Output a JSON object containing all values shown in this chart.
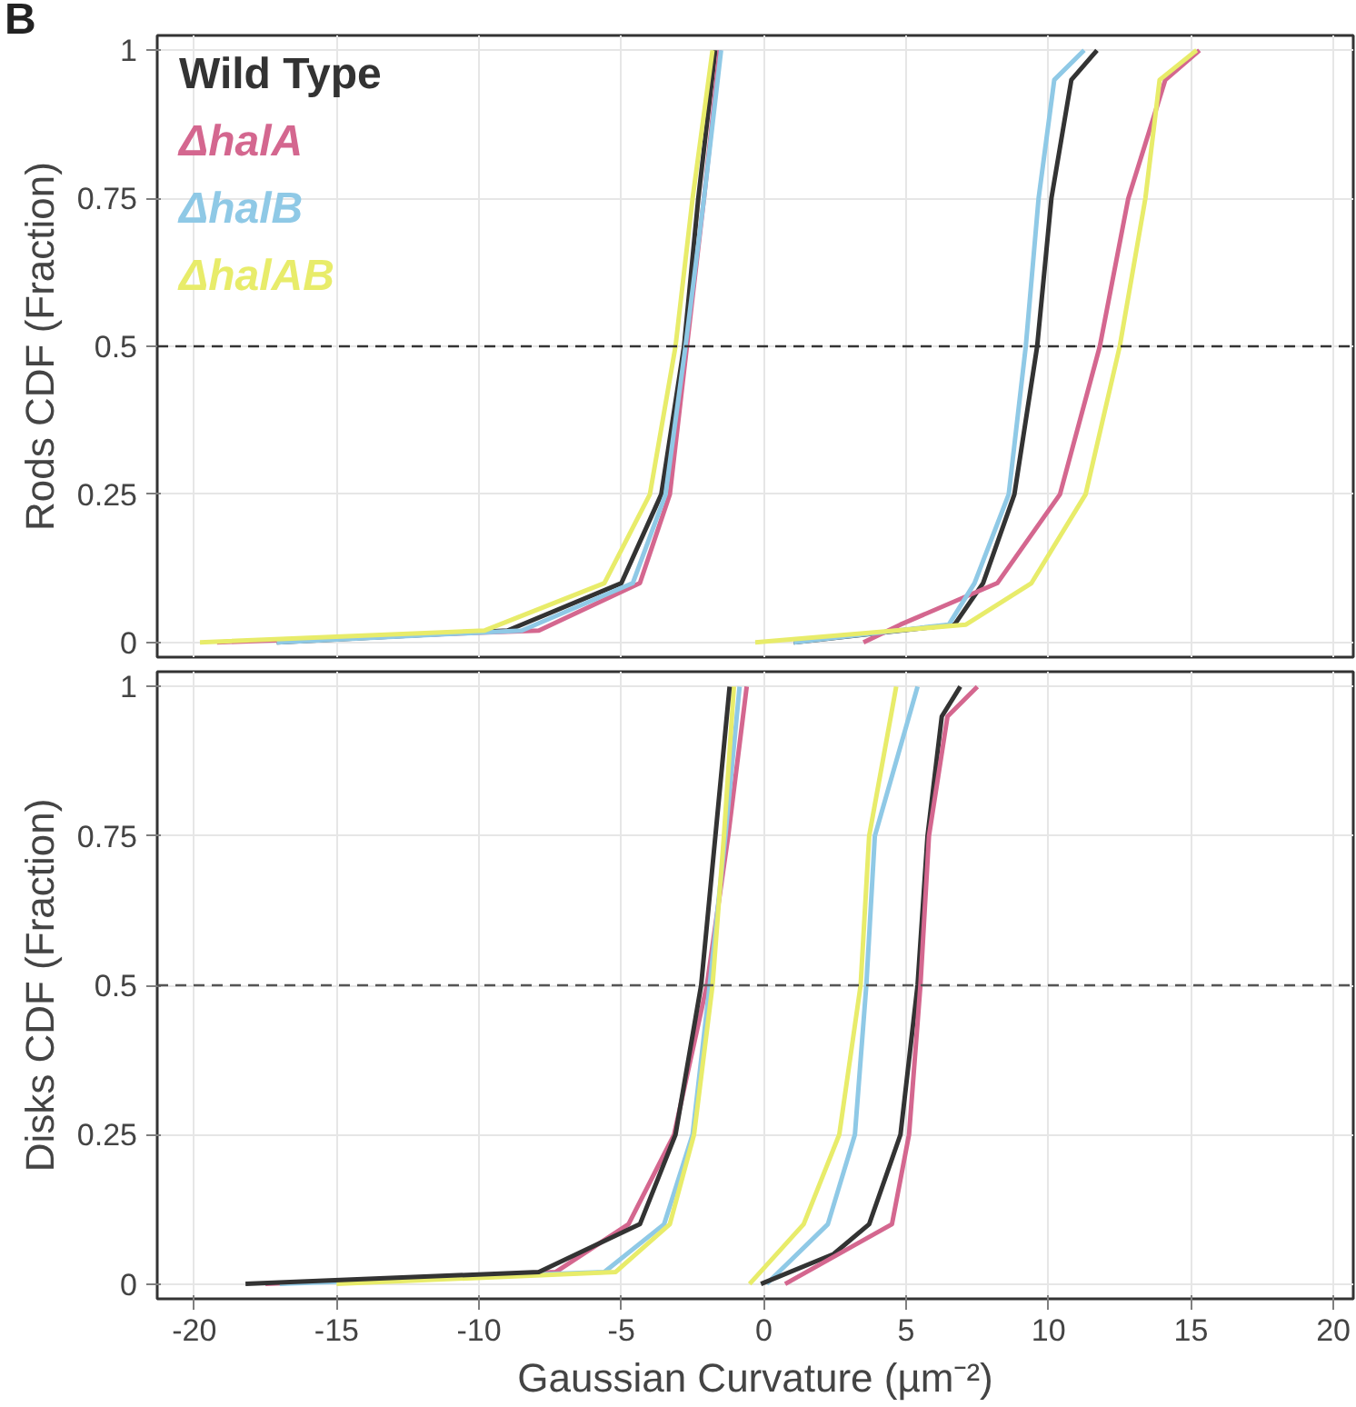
{
  "chart_data": [
    {
      "type": "line",
      "ylabel": "Rods CDF (Fraction)",
      "annotations": [
        "B"
      ],
      "xlim": [
        -21.3,
        20.7
      ],
      "ylim": [
        -0.025,
        1.025
      ],
      "xticks": [
        -20,
        -15,
        -10,
        -5,
        0,
        5,
        10,
        15,
        20
      ],
      "yticks": [
        0,
        0.25,
        0.5,
        0.75,
        1
      ],
      "grid": true,
      "legend": "top left",
      "tick_labels": "y",
      "marker": "none",
      "line_style": "solid",
      "ref_lines": [
        {
          "axis": "y",
          "value": 0.5,
          "color": "#333333",
          "line_style": "dashed"
        }
      ],
      "series": [
        {
          "name": "Wild Type",
          "color": "#333333",
          "x": [
            -17.1,
            -9,
            -5.0,
            -3.6,
            -2.8,
            -2.3,
            -1.7
          ],
          "values": [
            0,
            0.02,
            0.1,
            0.25,
            0.5,
            0.75,
            1
          ]
        },
        {
          "name": "ΔhalA",
          "color": "#d4678f",
          "x": [
            -19.2,
            -7.9,
            -4.35,
            -3.3,
            -2.7,
            -2.1,
            -1.55
          ],
          "values": [
            0,
            0.02,
            0.1,
            0.25,
            0.5,
            0.75,
            1
          ]
        },
        {
          "name": "ΔhalB",
          "color": "#8fc9e6",
          "x": [
            -17.1,
            -8.5,
            -4.6,
            -3.45,
            -2.75,
            -2.1,
            -1.5
          ],
          "values": [
            0,
            0.02,
            0.1,
            0.25,
            0.5,
            0.75,
            1
          ]
        },
        {
          "name": "ΔhalAB",
          "color": "#e8ec6a",
          "x": [
            -19.8,
            -9.8,
            -5.6,
            -4.0,
            -3.1,
            -2.5,
            -1.8
          ],
          "values": [
            0,
            0.02,
            0.1,
            0.25,
            0.5,
            0.75,
            1
          ]
        },
        {
          "color": "#333333",
          "x": [
            1.05,
            6.7,
            7.7,
            8.8,
            9.6,
            10.1,
            10.8,
            11.7
          ],
          "values": [
            0,
            0.03,
            0.1,
            0.25,
            0.5,
            0.75,
            0.95,
            1
          ]
        },
        {
          "color": "#d4678f",
          "x": [
            3.5,
            4.8,
            8.2,
            10.4,
            11.8,
            12.8,
            14.1,
            15.3
          ],
          "values": [
            0,
            0.03,
            0.1,
            0.25,
            0.5,
            0.75,
            0.95,
            1
          ]
        },
        {
          "color": "#8fc9e6",
          "x": [
            1.05,
            6.5,
            7.4,
            8.6,
            9.2,
            9.65,
            10.2,
            11.25
          ],
          "values": [
            0,
            0.03,
            0.1,
            0.25,
            0.5,
            0.75,
            0.95,
            1
          ]
        },
        {
          "color": "#e8ec6a",
          "x": [
            -0.3,
            7.1,
            9.4,
            11.3,
            12.5,
            13.4,
            13.9,
            15.2
          ],
          "values": [
            0,
            0.03,
            0.1,
            0.25,
            0.5,
            0.75,
            0.95,
            1
          ]
        }
      ]
    },
    {
      "type": "line",
      "xlabel": "Gaussian Curvature (µm⁻²)",
      "ylabel": "Disks CDF (Fraction)",
      "xlim": [
        -21.3,
        20.7
      ],
      "ylim": [
        -0.025,
        1.025
      ],
      "xticks": [
        -20,
        -15,
        -10,
        -5,
        0,
        5,
        10,
        15,
        20
      ],
      "yticks": [
        0,
        0.25,
        0.5,
        0.75,
        1
      ],
      "grid": true,
      "marker": "none",
      "line_style": "solid",
      "ref_lines": [
        {
          "axis": "y",
          "value": 0.5,
          "color": "#555555",
          "line_style": "dashed"
        }
      ],
      "series": [
        {
          "color": "#d4678f",
          "x": [
            -17.5,
            -7.3,
            -4.75,
            -3.15,
            -2.0,
            -1.25,
            -0.6
          ],
          "values": [
            0,
            0.02,
            0.1,
            0.25,
            0.5,
            0.75,
            1
          ]
        },
        {
          "color": "#8fc9e6",
          "x": [
            -17.0,
            -5.6,
            -3.5,
            -2.5,
            -1.9,
            -1.35,
            -0.85
          ],
          "values": [
            0,
            0.02,
            0.1,
            0.25,
            0.5,
            0.75,
            1
          ]
        },
        {
          "color": "#e8ec6a",
          "x": [
            -15.0,
            -5.2,
            -3.3,
            -2.45,
            -1.8,
            -1.4,
            -1.05
          ],
          "values": [
            0,
            0.02,
            0.1,
            0.25,
            0.5,
            0.75,
            1
          ]
        },
        {
          "color": "#333333",
          "x": [
            -18.2,
            -7.9,
            -4.35,
            -3.1,
            -2.2,
            -1.7,
            -1.2
          ],
          "values": [
            0,
            0.02,
            0.1,
            0.25,
            0.5,
            0.75,
            1
          ]
        },
        {
          "color": "#e8ec6a",
          "x": [
            -0.5,
            1.4,
            2.65,
            3.4,
            3.7,
            4.65
          ],
          "values": [
            0,
            0.1,
            0.25,
            0.5,
            0.75,
            1
          ]
        },
        {
          "color": "#8fc9e6",
          "x": [
            0.1,
            2.25,
            3.2,
            3.6,
            3.9,
            5.4
          ],
          "values": [
            0,
            0.1,
            0.25,
            0.5,
            0.75,
            1
          ]
        },
        {
          "color": "#333333",
          "x": [
            -0.1,
            2.45,
            3.7,
            4.8,
            5.4,
            5.75,
            6.25,
            6.9
          ],
          "values": [
            0,
            0.05,
            0.1,
            0.25,
            0.5,
            0.75,
            0.95,
            1
          ]
        },
        {
          "color": "#d4678f",
          "x": [
            0.75,
            4.5,
            5.1,
            5.5,
            5.8,
            6.45,
            7.5
          ],
          "values": [
            0,
            0.1,
            0.25,
            0.5,
            0.75,
            0.95,
            1
          ]
        }
      ]
    }
  ]
}
